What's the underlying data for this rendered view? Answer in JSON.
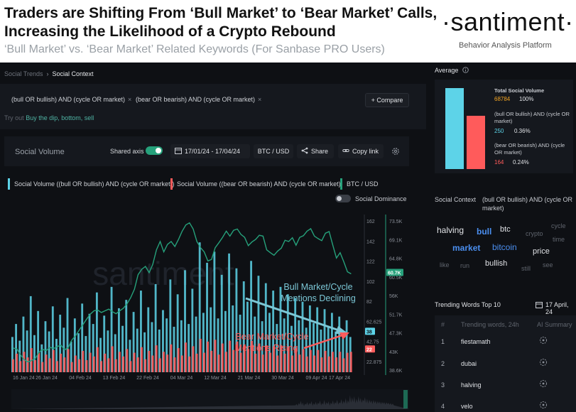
{
  "header": {
    "title": "Traders are Shifting From ‘Bull Market’ to ‘Bear Market’ Calls, Increasing the Likelihood of a Crypto Rebound",
    "subtitle": "‘Bull Market’ vs. ‘Bear Market’ Related Keywords (For Sanbase PRO Users)",
    "logo": "·santiment·",
    "logo_tagline": "Behavior Analysis Platform"
  },
  "breadcrumb": {
    "parent": "Social Trends",
    "separator": "›",
    "current": "Social Context"
  },
  "queries": [
    {
      "label": "(bull OR bullish) AND (cycle OR market)",
      "remove": "×"
    },
    {
      "label": "(bear OR bearish) AND (cycle OR market)",
      "remove": "×"
    }
  ],
  "compare_label": "+ Compare",
  "try_out": {
    "prefix": "Try out",
    "suggestions": "Buy the dip, bottom, sell"
  },
  "toolbar": {
    "metric": "Social Volume",
    "shared_axis": "Shared axis",
    "date_range": "17/01/24 - 17/04/24",
    "pair": "BTC / USD",
    "share": "Share",
    "copy_link": "Copy link"
  },
  "legend": {
    "bull": "Social Volume ((bull OR bullish) AND (cycle OR market))",
    "bear": "Social Volume ((bear OR bearish) AND (cycle OR market))",
    "btc": "BTC / USD",
    "dominance": "Social Dominance"
  },
  "chart_data": {
    "type": "bar",
    "title": "Social Volume vs BTC / USD",
    "x_ticks": [
      "16 Jan 24",
      "26 Jan 24",
      "04 Feb 24",
      "13 Feb 24",
      "22 Feb 24",
      "04 Mar 24",
      "12 Mar 24",
      "21 Mar 24",
      "30 Mar 24",
      "09 Apr 24",
      "17 Apr 24"
    ],
    "volume_axis_ticks": [
      "162",
      "142",
      "122",
      "102",
      "82",
      "62.625",
      "42.75",
      "22.875"
    ],
    "price_axis_ticks": [
      "73.5K",
      "69.1K",
      "64.8K",
      "60.5K",
      "56K",
      "51.7K",
      "47.3K",
      "43K",
      "38.6K"
    ],
    "current_labels": {
      "price": "60.7K",
      "bull": "38",
      "bear": "22"
    },
    "ylim_volume": [
      0,
      170
    ],
    "ylim_price": [
      37000,
      75000
    ],
    "series": [
      {
        "name": "Social Volume ((bull OR bullish) AND (cycle OR market))",
        "color": "#5dd3e8",
        "values": [
          38,
          52,
          34,
          60,
          45,
          82,
          40,
          66,
          30,
          55,
          44,
          71,
          36,
          62,
          48,
          80,
          33,
          58,
          42,
          74,
          39,
          63,
          52,
          86,
          37,
          61,
          45,
          92,
          41,
          69,
          50,
          78,
          35,
          65,
          47,
          88,
          43,
          70,
          54,
          95,
          46,
          67,
          58,
          100,
          49,
          84,
          56,
          110,
          52,
          90,
          60,
          140,
          64,
          118,
          70,
          130,
          58,
          105,
          66,
          128,
          72,
          112,
          62,
          98,
          76,
          120,
          60,
          104,
          55,
          96,
          64,
          88,
          52,
          92,
          58,
          84,
          50,
          80,
          56,
          76,
          48,
          72,
          53,
          70,
          46,
          68,
          50,
          64,
          44,
          60,
          42,
          56,
          38
        ]
      },
      {
        "name": "Social Volume ((bear OR bearish) AND (cycle OR market))",
        "color": "#ff5b5b",
        "values": [
          14,
          20,
          12,
          22,
          16,
          26,
          13,
          21,
          11,
          19,
          15,
          24,
          12,
          20,
          16,
          25,
          11,
          18,
          14,
          23,
          13,
          21,
          17,
          27,
          12,
          20,
          15,
          28,
          14,
          22,
          17,
          25,
          12,
          21,
          16,
          27,
          14,
          23,
          18,
          29,
          15,
          22,
          19,
          30,
          16,
          26,
          18,
          32,
          17,
          28,
          20,
          36,
          21,
          33,
          23,
          35,
          19,
          31,
          22,
          34,
          24,
          33,
          21,
          30,
          25,
          34,
          20,
          31,
          19,
          29,
          21,
          28,
          18,
          29,
          20,
          27,
          18,
          26,
          19,
          25,
          17,
          24,
          18,
          24,
          16,
          23,
          17,
          22,
          16,
          22,
          15,
          21,
          22
        ]
      },
      {
        "name": "BTC / USD",
        "color": "#26a17b",
        "values": [
          42800,
          42600,
          41200,
          40000,
          39500,
          39800,
          40300,
          41800,
          42500,
          42200,
          43000,
          42700,
          43200,
          43500,
          42400,
          43000,
          44800,
          45800,
          47200,
          48500,
          49800,
          51000,
          51800,
          52000,
          51400,
          51800,
          52200,
          51600,
          51100,
          51800,
          52400,
          53500,
          55000,
          57000,
          60500,
          61800,
          62500,
          61000,
          63000,
          66500,
          68500,
          66000,
          67800,
          68500,
          67300,
          69000,
          71000,
          72500,
          73000,
          71500,
          68500,
          67000,
          66000,
          63800,
          64200,
          67000,
          68200,
          69500,
          71000,
          69800,
          71200,
          71500,
          70200,
          69500,
          67500,
          68400,
          69000,
          70000,
          69800,
          66500,
          65800,
          65200,
          66200,
          66900,
          68800,
          68500,
          69400,
          67600,
          69500,
          69900,
          71000,
          71600,
          69800,
          69200,
          68700,
          70500,
          70900,
          67600,
          64500,
          65800,
          63600,
          61200,
          60700
        ]
      }
    ],
    "annotations": [
      "Bull Market/Cycle\nMentions Declining",
      "Bear Market/Cycle\nMentions Rising"
    ],
    "watermark": "santiment"
  },
  "average": {
    "title": "Average",
    "info_icon": "info-icon",
    "total": {
      "label": "Total Social Volume",
      "value": "68784",
      "pct": "100%"
    },
    "bull": {
      "label": "(bull OR bullish) AND (cycle OR market)",
      "value": "250",
      "pct": "0.36%"
    },
    "bear": {
      "label": "(bear OR bearish) AND (cycle OR market)",
      "value": "164",
      "pct": "0.24%"
    },
    "bar_fractions": {
      "bull": 1.0,
      "bear": 0.656
    },
    "colors": {
      "bull": "#5dd3e8",
      "bear": "#ff5b5b"
    }
  },
  "social_context": {
    "title": "Social Context",
    "query": "(bull OR bullish) AND (cycle OR market)",
    "words": [
      "halving",
      "bull",
      "btc",
      "crypto",
      "cycle",
      "time",
      "market",
      "bitcoin",
      "price",
      "like",
      "run",
      "bullish",
      "still",
      "see"
    ]
  },
  "trending": {
    "title": "Trending Words Top 10",
    "date": "17 April, 24",
    "col_rank": "#",
    "col_word": "Trending words, 24h",
    "col_ai": "AI Summary",
    "rows": [
      {
        "rank": "1",
        "word": "fiestamath"
      },
      {
        "rank": "2",
        "word": "dubai"
      },
      {
        "rank": "3",
        "word": "halving"
      },
      {
        "rank": "4",
        "word": "velo"
      }
    ]
  }
}
